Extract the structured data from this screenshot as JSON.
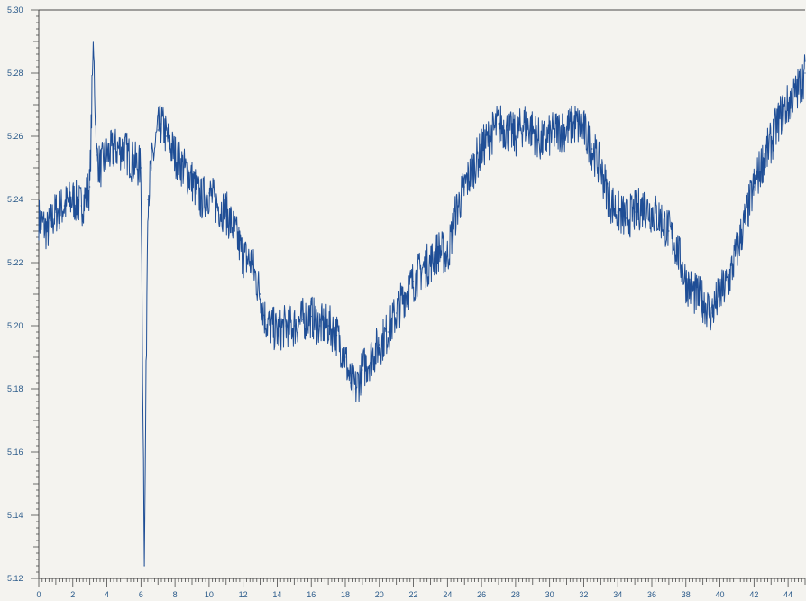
{
  "chart_data": {
    "type": "line",
    "title": "",
    "xlabel": "",
    "ylabel": "",
    "xlim": [
      0,
      45
    ],
    "ylim": [
      5.12,
      5.3
    ],
    "grid": false,
    "legend": "none",
    "colors": {
      "series": "#1f4e96",
      "axis": "#4a4a4a",
      "tick_label": "#2a5a8a",
      "background": "#f4f3ef"
    },
    "x_ticks": [
      0,
      2,
      4,
      6,
      8,
      10,
      12,
      14,
      16,
      18,
      20,
      22,
      24,
      26,
      28,
      30,
      32,
      34,
      36,
      38,
      40,
      42,
      44
    ],
    "x_tick_labels": [
      "0",
      "2",
      "4",
      "6",
      "8",
      "10",
      "12",
      "14",
      "16",
      "18",
      "20",
      "22",
      "24",
      "26",
      "28",
      "30",
      "32",
      "34",
      "36",
      "38",
      "40",
      "42",
      "44"
    ],
    "y_ticks": [
      5.12,
      5.14,
      5.16,
      5.18,
      5.2,
      5.22,
      5.24,
      5.26,
      5.28,
      5.3
    ],
    "y_tick_labels": [
      "5.12",
      "5.14",
      "5.16",
      "5.18",
      "5.20",
      "5.22",
      "5.24",
      "5.26",
      "5.28",
      "5.30"
    ],
    "series": [
      {
        "x": [
          0,
          0.5,
          1,
          1.5,
          2,
          2.5,
          3,
          3.2,
          3.4,
          3.6,
          4,
          4.5,
          5,
          5.5,
          6,
          6.2,
          6.4,
          6.6,
          7,
          7.2,
          7.5,
          8,
          8.5,
          9,
          9.5,
          10,
          10.5,
          11,
          11.5,
          12,
          12.5,
          13,
          13.3,
          13.6,
          14,
          14.5,
          15,
          15.5,
          16,
          16.5,
          17,
          17.5,
          18,
          18.3,
          18.6,
          19,
          19.5,
          20,
          20.5,
          21,
          21.5,
          22,
          22.5,
          23,
          23.5,
          24,
          24.5,
          25,
          25.5,
          26,
          26.5,
          27,
          27.5,
          28,
          28.5,
          29,
          29.5,
          30,
          30.5,
          31,
          31.5,
          32,
          32.5,
          33,
          33.5,
          34,
          34.5,
          35,
          35.5,
          36,
          36.5,
          37,
          37.5,
          38,
          38.5,
          39,
          39.5,
          40,
          40.5,
          41,
          41.5,
          42,
          42.5,
          43,
          43.5,
          44,
          44.5,
          45
        ],
        "y": [
          5.234,
          5.23,
          5.236,
          5.238,
          5.24,
          5.238,
          5.244,
          5.29,
          5.254,
          5.25,
          5.254,
          5.256,
          5.256,
          5.252,
          5.25,
          5.124,
          5.24,
          5.25,
          5.262,
          5.264,
          5.26,
          5.254,
          5.25,
          5.246,
          5.24,
          5.242,
          5.238,
          5.236,
          5.23,
          5.222,
          5.22,
          5.21,
          5.202,
          5.2,
          5.198,
          5.2,
          5.2,
          5.202,
          5.203,
          5.2,
          5.2,
          5.197,
          5.19,
          5.182,
          5.18,
          5.186,
          5.19,
          5.194,
          5.198,
          5.204,
          5.21,
          5.214,
          5.218,
          5.22,
          5.224,
          5.222,
          5.236,
          5.244,
          5.25,
          5.256,
          5.26,
          5.264,
          5.262,
          5.26,
          5.264,
          5.262,
          5.258,
          5.26,
          5.262,
          5.262,
          5.264,
          5.262,
          5.256,
          5.25,
          5.24,
          5.236,
          5.234,
          5.236,
          5.238,
          5.236,
          5.234,
          5.23,
          5.224,
          5.214,
          5.21,
          5.208,
          5.204,
          5.21,
          5.214,
          5.224,
          5.234,
          5.244,
          5.252,
          5.258,
          5.266,
          5.27,
          5.274,
          5.28
        ]
      }
    ]
  }
}
